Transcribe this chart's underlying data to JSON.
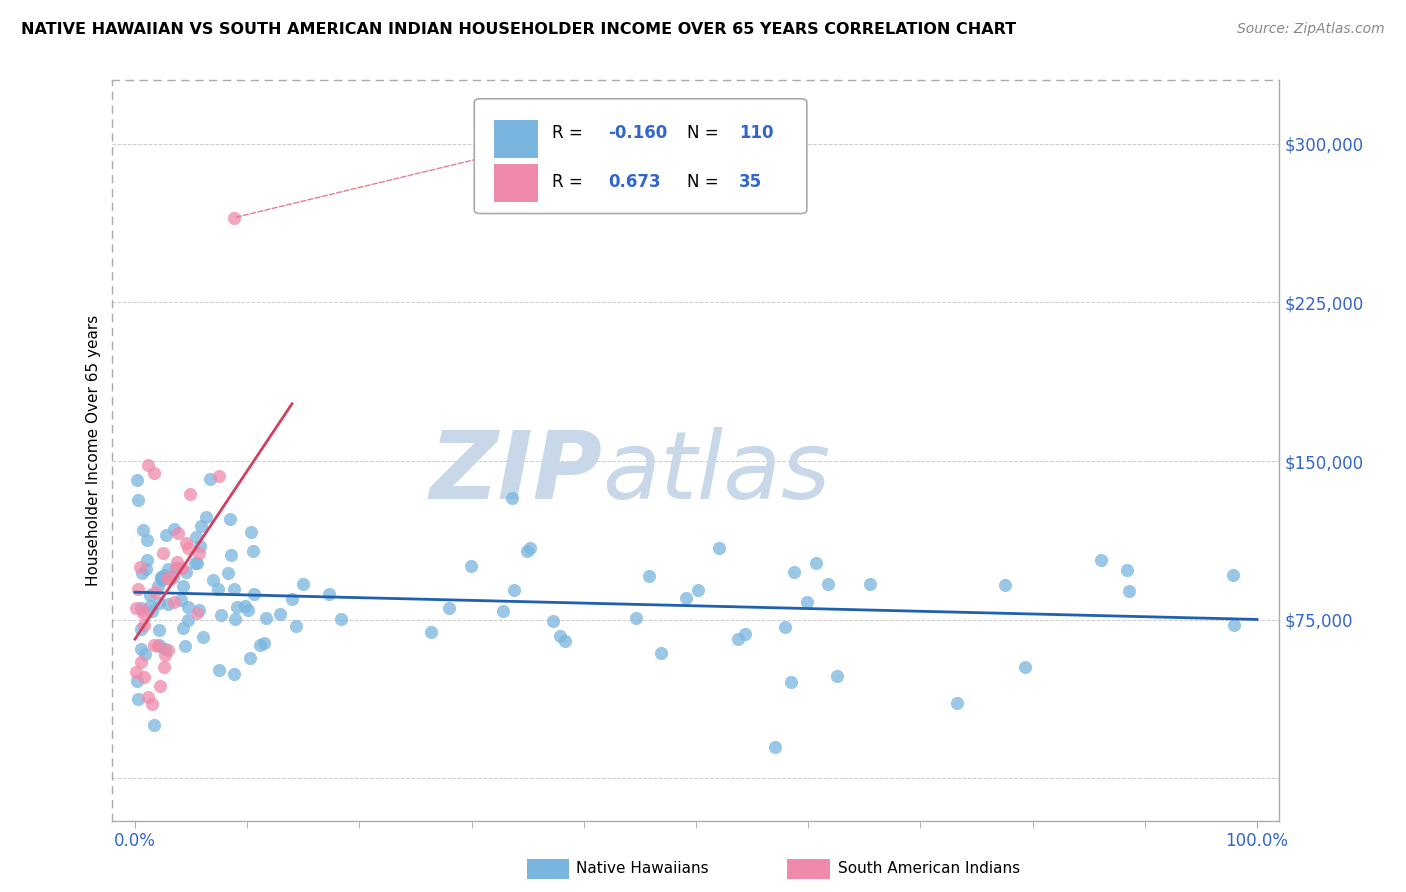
{
  "title": "NATIVE HAWAIIAN VS SOUTH AMERICAN INDIAN HOUSEHOLDER INCOME OVER 65 YEARS CORRELATION CHART",
  "source": "Source: ZipAtlas.com",
  "ylabel": "Householder Income Over 65 years",
  "y_tick_vals": [
    0,
    75000,
    150000,
    225000,
    300000
  ],
  "y_tick_labels": [
    "",
    "$75,000",
    "$150,000",
    "$225,000",
    "$300,000"
  ],
  "blue_scatter_color": "#7ab5e0",
  "pink_scatter_color": "#f08aaa",
  "blue_line_color": "#2060b0",
  "pink_line_color": "#d04060",
  "legend_box_color": "#ffffff",
  "legend_border_color": "#aaaaaa",
  "text_color_blue": "#3366cc",
  "watermark_zip_color": "#c8d8e8",
  "watermark_atlas_color": "#c8d8e8",
  "background_color": "#ffffff",
  "grid_color": "#cccccc",
  "native_hawaiians_label": "Native Hawaiians",
  "south_american_label": "South American Indians",
  "r_blue": "-0.160",
  "n_blue": "110",
  "r_pink": "0.673",
  "n_pink": "35",
  "xlim": [
    -2,
    102
  ],
  "ylim": [
    -20000,
    330000
  ],
  "seed_blue": 10,
  "seed_pink": 20
}
